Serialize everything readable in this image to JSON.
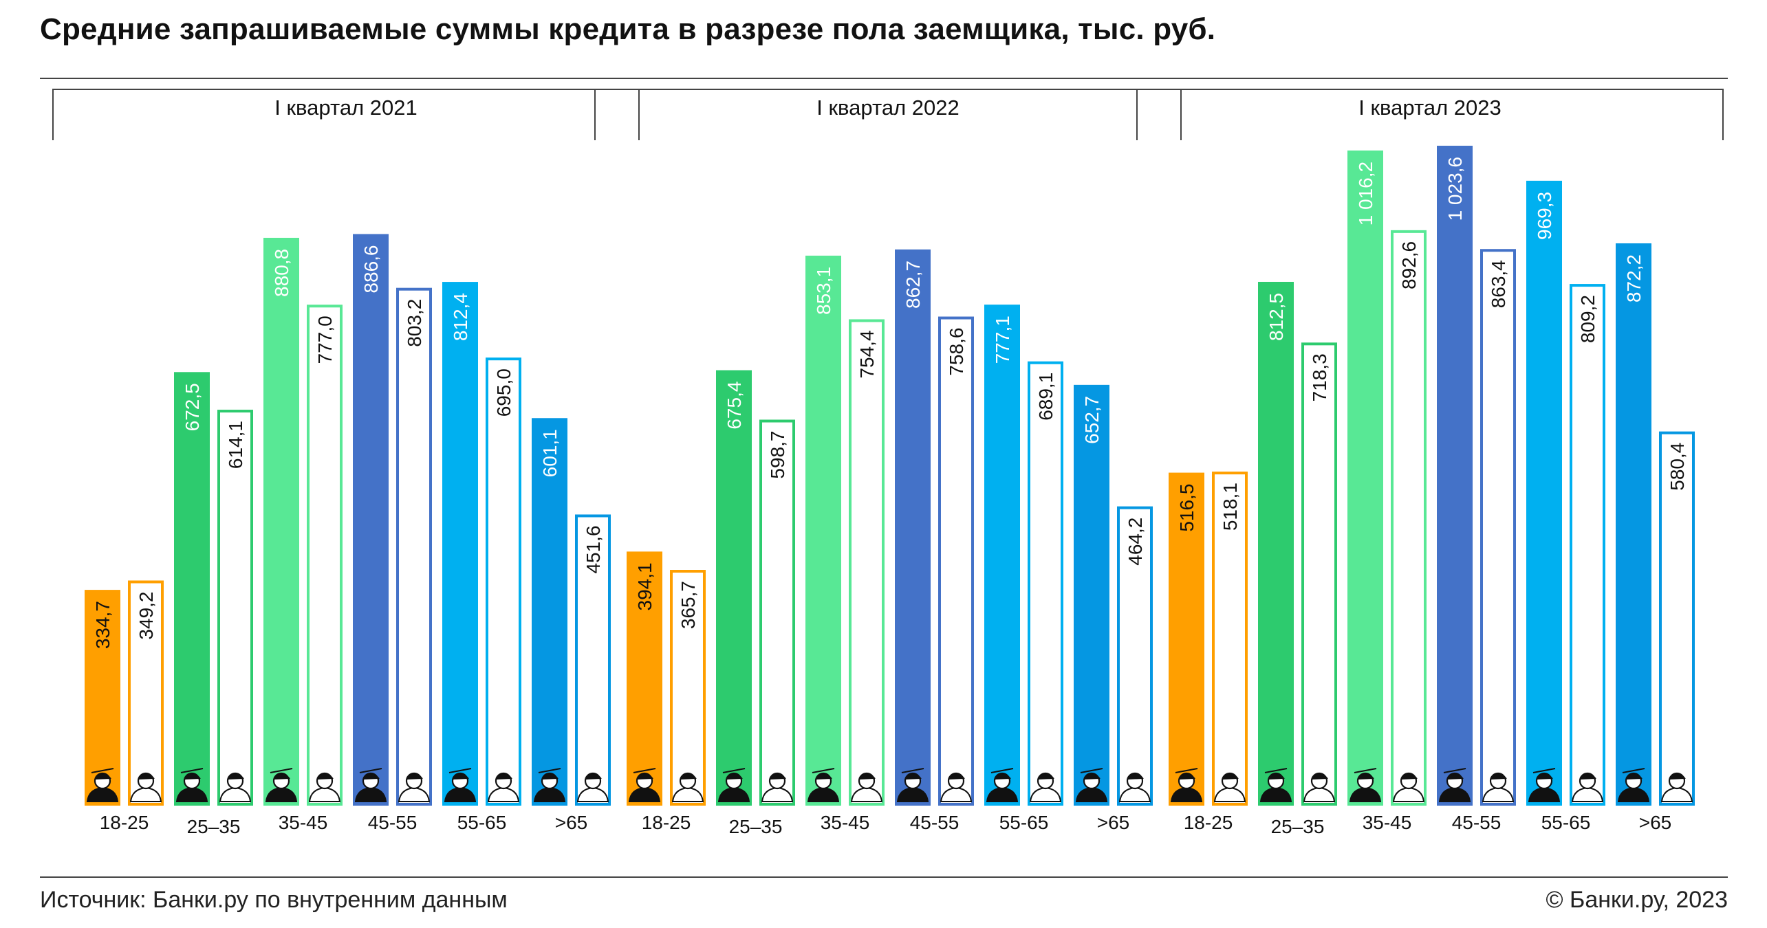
{
  "title": "Средние запрашиваемые суммы кредита в разрезе пола заемщика, тыс. руб.",
  "source": "Источник: Банки.ру по внутренним данным",
  "copyright": "© Банки.ру, 2023",
  "colors": {
    "18-25": "#FF9F00",
    "25-35": "#2DCB6E",
    "35-45": "#58E895",
    "45-55": "#4472C8",
    "55-65": "#00B0F0",
    ">65": "#0597E2"
  },
  "chart_data": {
    "type": "bar",
    "categories": [
      "18-25",
      "25–35",
      "35-45",
      "45-55",
      "55-65",
      ">65"
    ],
    "groups": [
      {
        "label": "I квартал 2021",
        "filled": [
          334.7,
          672.5,
          880.8,
          886.6,
          812.4,
          601.1
        ],
        "outlined": [
          349.2,
          614.1,
          777.0,
          803.2,
          695.0,
          451.6
        ],
        "filled_labels": [
          "334,7",
          "672,5",
          "880,8",
          "886,6",
          "812,4",
          "601,1"
        ],
        "outlined_labels": [
          "349,2",
          "614,1",
          "777,0",
          "803,2",
          "695,0",
          "451,6"
        ]
      },
      {
        "label": "I квартал 2022",
        "filled": [
          394.1,
          675.4,
          853.1,
          862.7,
          777.1,
          652.7
        ],
        "outlined": [
          365.7,
          598.7,
          754.4,
          758.6,
          689.1,
          464.2
        ],
        "filled_labels": [
          "394,1",
          "675,4",
          "853,1",
          "862,7",
          "777,1",
          "652,7"
        ],
        "outlined_labels": [
          "365,7",
          "598,7",
          "754,4",
          "758,6",
          "689,1",
          "464,2"
        ]
      },
      {
        "label": "I квартал 2023",
        "filled": [
          516.5,
          812.5,
          1016.2,
          1023.6,
          969.3,
          872.2
        ],
        "outlined": [
          518.1,
          718.3,
          892.6,
          863.4,
          809.2,
          580.4
        ],
        "filled_labels": [
          "516,5",
          "812,5",
          "1 016,2",
          "1 023,6",
          "969,3",
          "872,2"
        ],
        "outlined_labels": [
          "518,1",
          "718,3",
          "892,6",
          "863,4",
          "809,2",
          "580,4"
        ]
      }
    ],
    "ylim": [
      0,
      1023.6
    ],
    "grid": false,
    "legend": "none"
  }
}
